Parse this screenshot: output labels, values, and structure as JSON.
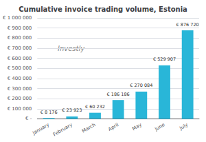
{
  "chart_data": {
    "type": "bar",
    "title": "Cumulative invoice trading volume, Estonia",
    "categories": [
      "January",
      "February",
      "March",
      "April",
      "May",
      "June",
      "July"
    ],
    "values": [
      8176,
      23923,
      60232,
      186186,
      270084,
      529907,
      876720
    ],
    "value_labels": [
      "€ 8 176",
      "€ 23 923",
      "€ 60 232",
      "€ 186 186",
      "€ 270 084",
      "€ 529 907",
      "€ 876 720"
    ],
    "data_labels": true,
    "color": "#29b6d8",
    "ylim": [
      0,
      1000000
    ],
    "yticks": [
      {
        "value": 0,
        "label": "€ -"
      },
      {
        "value": 100000,
        "label": "€ 100 000"
      },
      {
        "value": 200000,
        "label": "€ 200 000"
      },
      {
        "value": 300000,
        "label": "€ 300 000"
      },
      {
        "value": 400000,
        "label": "€ 400 000"
      },
      {
        "value": 500000,
        "label": "€ 500 000"
      },
      {
        "value": 600000,
        "label": "€ 600 000"
      },
      {
        "value": 700000,
        "label": "€ 700 000"
      },
      {
        "value": 800000,
        "label": "€ 800 000"
      },
      {
        "value": 900000,
        "label": "€ 900 000"
      },
      {
        "value": 1000000,
        "label": "€ 1 000 000"
      }
    ],
    "grid": true,
    "annotation": "Investly"
  }
}
